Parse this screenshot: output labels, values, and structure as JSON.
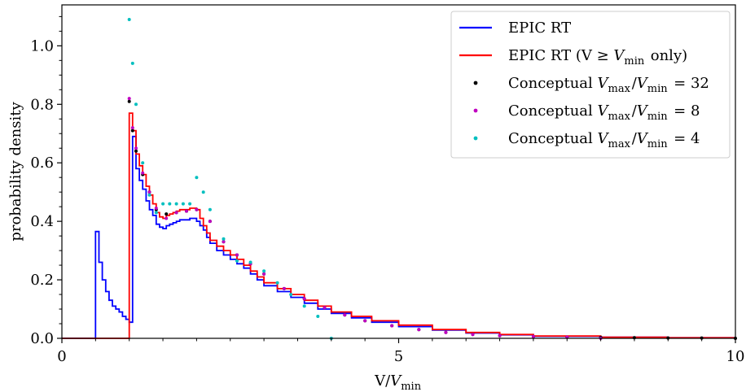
{
  "chart_data": {
    "type": "line",
    "title": "",
    "xlabel": "V/V_min",
    "ylabel": "probability density",
    "xlim": [
      0,
      10
    ],
    "ylim": [
      0,
      1.14
    ],
    "x_ticks": [
      0,
      5,
      10
    ],
    "x_tick_labels": [
      "0",
      "5",
      "10"
    ],
    "y_ticks": [
      0.0,
      0.2,
      0.4,
      0.6,
      0.8,
      1.0
    ],
    "y_tick_labels": [
      "0.0",
      "0.2",
      "0.4",
      "0.6",
      "0.8",
      "1.0"
    ],
    "grid": false,
    "legend_position": "top-right",
    "series": [
      {
        "name": "EPIC RT",
        "style": "step",
        "color": "#0000ff",
        "x": [
          0.0,
          0.5,
          0.55,
          0.6,
          0.65,
          0.7,
          0.75,
          0.8,
          0.85,
          0.9,
          0.95,
          1.0,
          1.05,
          1.1,
          1.15,
          1.2,
          1.25,
          1.3,
          1.35,
          1.4,
          1.45,
          1.5,
          1.55,
          1.6,
          1.65,
          1.7,
          1.75,
          1.8,
          1.85,
          1.9,
          1.95,
          2.0,
          2.05,
          2.1,
          2.15,
          2.2,
          2.3,
          2.4,
          2.5,
          2.6,
          2.7,
          2.8,
          2.9,
          3.0,
          3.2,
          3.4,
          3.6,
          3.8,
          4.0,
          4.3,
          4.6,
          5.0,
          5.5,
          6.0,
          6.5,
          7.0,
          8.0,
          9.0,
          10.0
        ],
        "y": [
          0.0,
          0.365,
          0.26,
          0.2,
          0.16,
          0.13,
          0.11,
          0.1,
          0.09,
          0.075,
          0.065,
          0.055,
          0.69,
          0.58,
          0.54,
          0.51,
          0.47,
          0.44,
          0.42,
          0.39,
          0.38,
          0.375,
          0.385,
          0.39,
          0.395,
          0.4,
          0.405,
          0.405,
          0.405,
          0.41,
          0.41,
          0.4,
          0.385,
          0.37,
          0.345,
          0.325,
          0.3,
          0.285,
          0.27,
          0.255,
          0.24,
          0.22,
          0.2,
          0.18,
          0.16,
          0.14,
          0.12,
          0.1,
          0.085,
          0.07,
          0.055,
          0.04,
          0.028,
          0.018,
          0.012,
          0.007,
          0.004,
          0.002,
          0.0
        ]
      },
      {
        "name": "EPIC RT (V ≥ V_min only)",
        "style": "step",
        "color": "#ff0000",
        "x": [
          0.0,
          1.0,
          1.05,
          1.1,
          1.15,
          1.2,
          1.25,
          1.3,
          1.35,
          1.4,
          1.45,
          1.5,
          1.55,
          1.6,
          1.65,
          1.7,
          1.75,
          1.8,
          1.85,
          1.9,
          1.95,
          2.0,
          2.05,
          2.1,
          2.15,
          2.2,
          2.3,
          2.4,
          2.5,
          2.6,
          2.7,
          2.8,
          2.9,
          3.0,
          3.2,
          3.4,
          3.6,
          3.8,
          4.0,
          4.3,
          4.6,
          5.0,
          5.5,
          6.0,
          6.5,
          7.0,
          8.0,
          9.0,
          10.0
        ],
        "y": [
          0.0,
          0.77,
          0.71,
          0.63,
          0.59,
          0.56,
          0.52,
          0.49,
          0.46,
          0.43,
          0.415,
          0.41,
          0.42,
          0.425,
          0.43,
          0.435,
          0.44,
          0.44,
          0.44,
          0.445,
          0.445,
          0.44,
          0.41,
          0.385,
          0.36,
          0.335,
          0.315,
          0.3,
          0.285,
          0.27,
          0.25,
          0.23,
          0.21,
          0.19,
          0.17,
          0.15,
          0.13,
          0.11,
          0.09,
          0.075,
          0.06,
          0.045,
          0.03,
          0.02,
          0.013,
          0.008,
          0.004,
          0.002,
          0.0
        ]
      },
      {
        "name": "Conceptual V_max/V_min = 32",
        "style": "points",
        "color": "#000000",
        "x": [
          1.0,
          1.05,
          1.1,
          1.2,
          1.3,
          1.4,
          1.55,
          1.7,
          1.85,
          2.0,
          2.2,
          2.4,
          2.6,
          2.8,
          3.0,
          3.3,
          3.6,
          3.9,
          4.2,
          4.5,
          4.9,
          5.3,
          5.7,
          6.1,
          6.5,
          7.0,
          7.5,
          8.0,
          8.5,
          9.0,
          9.5,
          10.0
        ],
        "y": [
          0.81,
          0.71,
          0.64,
          0.56,
          0.5,
          0.44,
          0.425,
          0.43,
          0.435,
          0.44,
          0.4,
          0.33,
          0.285,
          0.255,
          0.22,
          0.17,
          0.135,
          0.105,
          0.08,
          0.06,
          0.043,
          0.03,
          0.02,
          0.013,
          0.009,
          0.006,
          0.004,
          0.003,
          0.002,
          0.001,
          0.001,
          0.0
        ]
      },
      {
        "name": "Conceptual V_max/V_min = 8",
        "style": "points",
        "color": "#c000c0",
        "x": [
          1.0,
          1.05,
          1.1,
          1.2,
          1.3,
          1.4,
          1.55,
          1.7,
          1.85,
          2.0,
          2.2,
          2.4,
          2.6,
          2.8,
          3.0,
          3.3,
          3.6,
          3.9,
          4.2,
          4.5,
          4.9,
          5.3,
          5.7,
          6.1,
          6.5,
          7.0,
          7.5,
          8.0
        ],
        "y": [
          0.82,
          0.72,
          0.65,
          0.565,
          0.5,
          0.445,
          0.41,
          0.43,
          0.435,
          0.44,
          0.4,
          0.33,
          0.285,
          0.255,
          0.22,
          0.17,
          0.135,
          0.105,
          0.08,
          0.06,
          0.043,
          0.03,
          0.02,
          0.013,
          0.009,
          0.006,
          0.004,
          0.0
        ]
      },
      {
        "name": "Conceptual V_max/V_min = 4",
        "style": "points",
        "color": "#00bfbf",
        "x": [
          1.0,
          1.05,
          1.1,
          1.2,
          1.3,
          1.4,
          1.5,
          1.6,
          1.7,
          1.8,
          1.9,
          2.0,
          2.1,
          2.2,
          2.4,
          2.6,
          2.8,
          3.0,
          3.2,
          3.4,
          3.6,
          3.8,
          4.0
        ],
        "y": [
          1.09,
          0.94,
          0.8,
          0.6,
          0.49,
          0.43,
          0.46,
          0.46,
          0.46,
          0.46,
          0.46,
          0.55,
          0.5,
          0.44,
          0.34,
          0.265,
          0.26,
          0.23,
          0.19,
          0.15,
          0.11,
          0.075,
          0.0
        ]
      }
    ]
  }
}
